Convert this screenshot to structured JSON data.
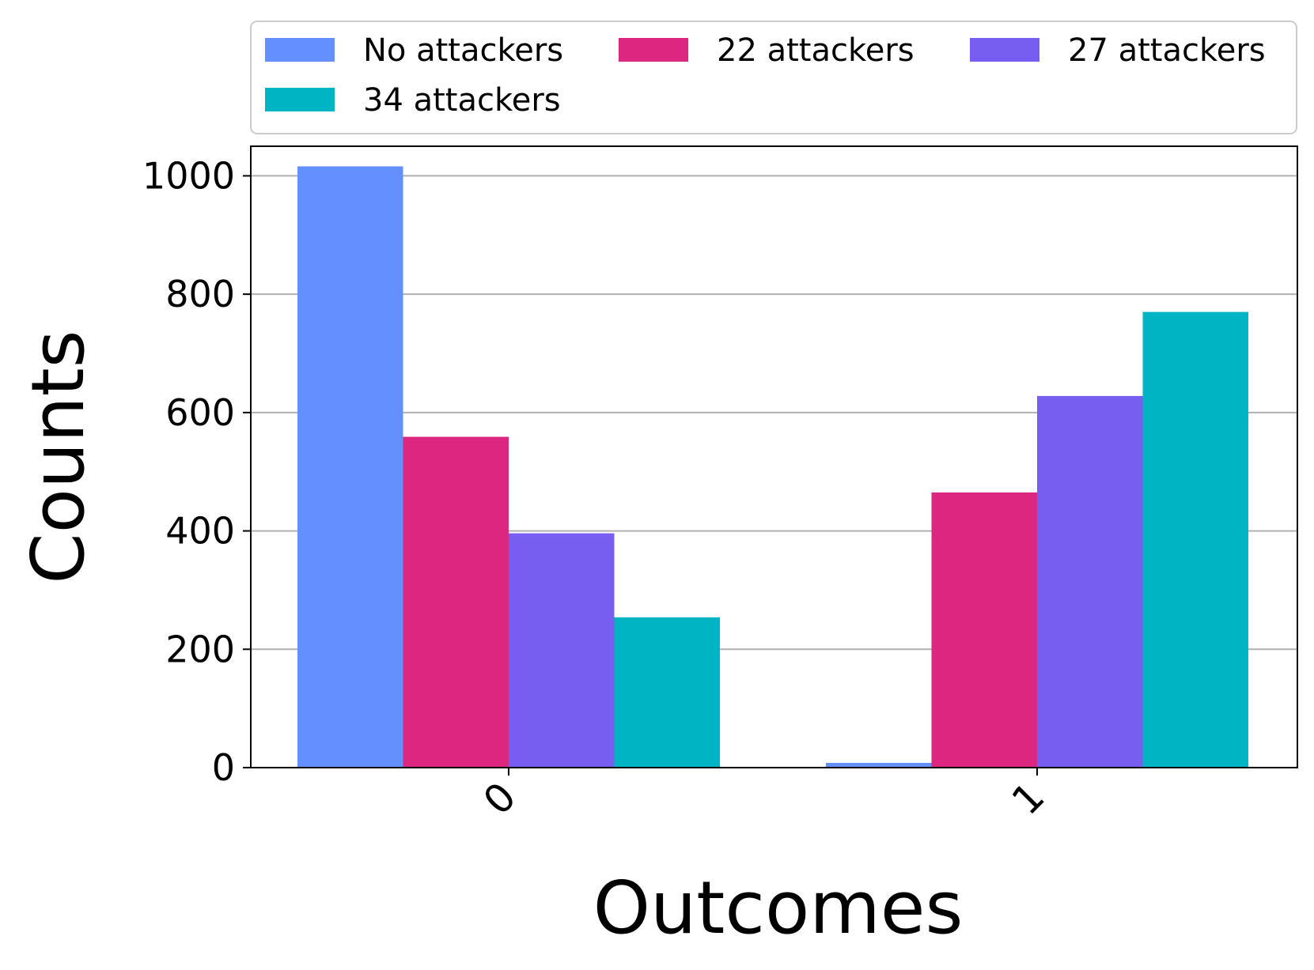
{
  "chart_data": {
    "type": "bar",
    "xlabel": "Outcomes",
    "ylabel": "Counts",
    "categories": [
      "0",
      "1"
    ],
    "series": [
      {
        "name": "No attackers",
        "color": "#648FFF",
        "values": [
          1016,
          8
        ]
      },
      {
        "name": "22 attackers",
        "color": "#DC267F",
        "values": [
          559,
          465
        ]
      },
      {
        "name": "27 attackers",
        "color": "#785EF0",
        "values": [
          396,
          628
        ]
      },
      {
        "name": "34 attackers",
        "color": "#00B4C3",
        "values": [
          254,
          770
        ]
      }
    ],
    "ylim": [
      0,
      1050
    ],
    "yticks": [
      0,
      200,
      400,
      600,
      800,
      1000
    ],
    "grid": "horizontal",
    "legend_position": "top",
    "x_tick_rotation": "45 degrees"
  }
}
